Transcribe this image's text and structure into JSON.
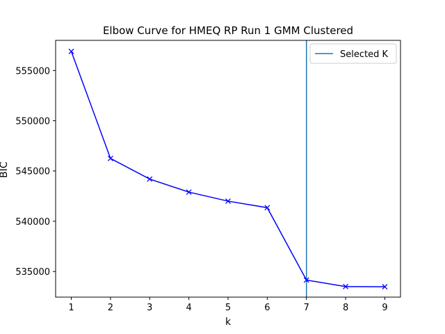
{
  "chart_data": {
    "type": "line",
    "title": "Elbow Curve for HMEQ RP Run 1 GMM Clustered",
    "xlabel": "k",
    "ylabel": "BIC",
    "x": [
      1,
      2,
      3,
      4,
      5,
      6,
      7,
      8,
      9
    ],
    "series": [
      {
        "values": [
          556900,
          546250,
          544200,
          542900,
          542000,
          541350,
          534150,
          533500,
          533480
        ],
        "color": "#0000ff",
        "marker": "x"
      }
    ],
    "xlim": [
      0.6,
      9.4
    ],
    "ylim": [
      532450,
      558000
    ],
    "xticks": [
      1,
      2,
      3,
      4,
      5,
      6,
      7,
      8,
      9
    ],
    "yticks": [
      535000,
      540000,
      545000,
      550000,
      555000
    ],
    "selected_k": 7,
    "selected_line_color": "#1f77b4",
    "legend": {
      "position": "top-right",
      "entries": [
        "Selected K"
      ]
    },
    "grid": false
  }
}
